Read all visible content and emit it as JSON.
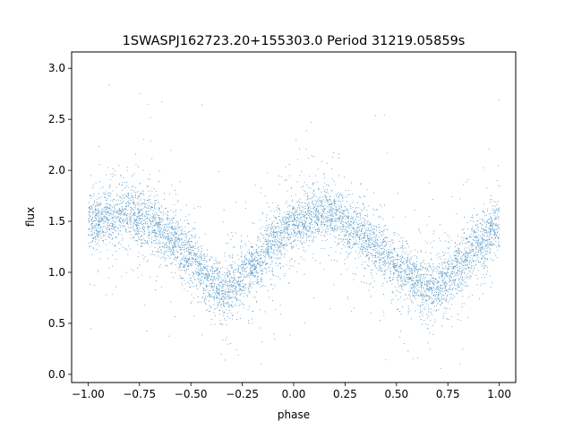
{
  "chart_data": {
    "type": "scatter",
    "title": "1SWASPJ162723.20+155303.0 Period 31219.05859s",
    "xlabel": "phase",
    "ylabel": "flux",
    "xlim": [
      -1.08,
      1.08
    ],
    "ylim": [
      -0.08,
      3.16
    ],
    "xticks": [
      -1.0,
      -0.75,
      -0.5,
      -0.25,
      0.0,
      0.25,
      0.5,
      0.75,
      1.0
    ],
    "xtick_labels": [
      "−1.00",
      "−0.75",
      "−0.50",
      "−0.25",
      "0.00",
      "0.25",
      "0.50",
      "0.75",
      "1.00"
    ],
    "yticks": [
      0.0,
      0.5,
      1.0,
      1.5,
      2.0,
      2.5,
      3.0
    ],
    "ytick_labels": [
      "0.0",
      "0.5",
      "1.0",
      "1.5",
      "2.0",
      "2.5",
      "3.0"
    ],
    "grid": false,
    "marker_color": "#1f77b4",
    "series": [
      {
        "x_range": [
          -1.0,
          1.0
        ],
        "curve_phase": [
          -1.0,
          -0.9,
          -0.8,
          -0.7,
          -0.6,
          -0.5,
          -0.4,
          -0.35,
          -0.3,
          -0.2,
          -0.1,
          0.0,
          0.1,
          0.15,
          0.2,
          0.3,
          0.4,
          0.5,
          0.6,
          0.65,
          0.7,
          0.8,
          0.9,
          1.0
        ],
        "curve_flux": [
          1.48,
          1.55,
          1.57,
          1.5,
          1.35,
          1.13,
          0.9,
          0.83,
          0.85,
          1.05,
          1.3,
          1.45,
          1.55,
          1.57,
          1.55,
          1.42,
          1.25,
          1.05,
          0.88,
          0.83,
          0.85,
          1.05,
          1.3,
          1.48
        ],
        "point_count": 40000
      }
    ]
  }
}
